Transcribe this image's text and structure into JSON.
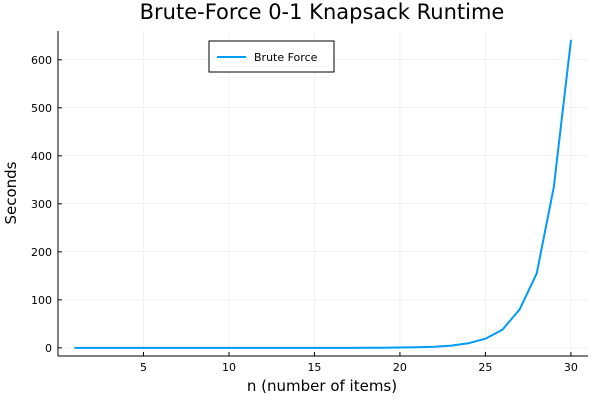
{
  "chart_data": {
    "type": "line",
    "title": "Brute-Force 0-1 Knapsack Runtime",
    "xlabel": "n (number of items)",
    "ylabel": "Seconds",
    "xlim": [
      0,
      31
    ],
    "ylim": [
      -17,
      660
    ],
    "xticks": [
      5,
      10,
      15,
      20,
      25,
      30
    ],
    "yticks": [
      0,
      100,
      200,
      300,
      400,
      500,
      600
    ],
    "grid": true,
    "legend": {
      "position": "top-center",
      "entries": [
        "Brute Force"
      ]
    },
    "series": [
      {
        "name": "Brute Force",
        "color": "#009af9",
        "x": [
          1,
          2,
          3,
          4,
          5,
          6,
          7,
          8,
          9,
          10,
          11,
          12,
          13,
          14,
          15,
          16,
          17,
          18,
          19,
          20,
          21,
          22,
          23,
          24,
          25,
          26,
          27,
          28,
          29,
          30
        ],
        "y": [
          0,
          0,
          0,
          0,
          0,
          0,
          0,
          0,
          0,
          0,
          0,
          0,
          0,
          0,
          0,
          0,
          0,
          0.1,
          0.3,
          0.6,
          1.1,
          2.3,
          4.7,
          9.5,
          19,
          38,
          80,
          155,
          335,
          640
        ]
      }
    ]
  }
}
